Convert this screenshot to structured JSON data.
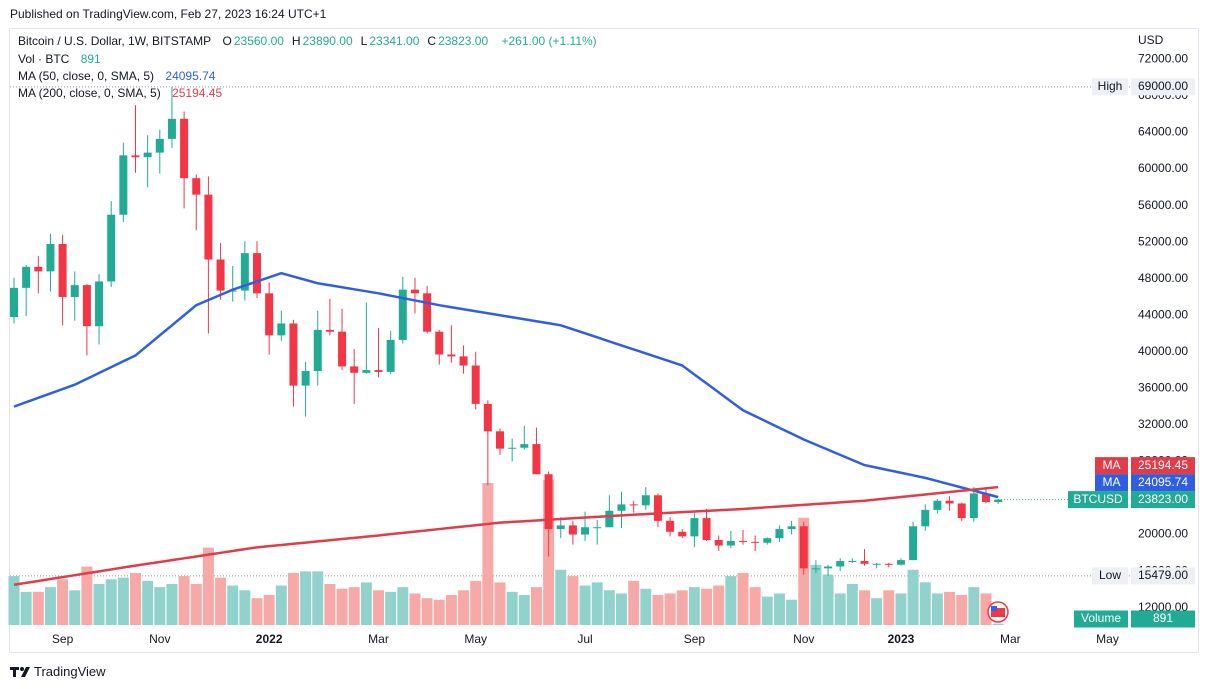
{
  "header": {
    "published": "Published on TradingView.com, Feb 27, 2023 16:24 UTC+1"
  },
  "chart_data": {
    "type": "candlestick",
    "title": "Bitcoin / U.S. Dollar, 1W, BITSTAMP",
    "legend_ohlc": [
      {
        "key": "O",
        "text": "23560.00"
      },
      {
        "key": "H",
        "text": "23890.00"
      },
      {
        "key": "L",
        "text": "23341.00"
      },
      {
        "key": "C",
        "text": "23823.00"
      }
    ],
    "change": "+261.00 (+1.11%)",
    "volume_title": "Vol · BTC",
    "currency": "USD",
    "up_color": "#22ab94",
    "down_color": "#f23645",
    "volume_up_color": "#92d2cc",
    "volume_down_color": "#f7a9a7",
    "grid": false,
    "categories": [
      null,
      null,
      null,
      null,
      "Sep",
      null,
      null,
      null,
      null,
      null,
      null,
      null,
      "Nov",
      null,
      null,
      null,
      null,
      null,
      null,
      null,
      null,
      "2022",
      null,
      null,
      null,
      null,
      null,
      null,
      null,
      null,
      "Mar",
      null,
      null,
      null,
      null,
      null,
      null,
      null,
      "May",
      null,
      null,
      null,
      null,
      null,
      null,
      null,
      null,
      "Jul",
      null,
      null,
      null,
      null,
      null,
      null,
      null,
      null,
      "Sep",
      null,
      null,
      null,
      null,
      null,
      null,
      null,
      null,
      "Nov",
      null,
      null,
      null,
      null,
      null,
      null,
      null,
      "2023",
      null,
      null,
      null,
      null,
      null,
      null,
      null,
      null,
      "Mar",
      null,
      null,
      null,
      null,
      null,
      null,
      null,
      "May",
      null
    ],
    "open": [
      43800,
      47000,
      49300,
      48800,
      51800,
      46000,
      47300,
      42800,
      47700,
      55000,
      61500,
      61300,
      61800,
      63300,
      65500,
      59000,
      57200,
      50100,
      46700,
      46700,
      50800,
      46400,
      41800,
      43100,
      36300,
      37900,
      42400,
      42200,
      38400,
      37700,
      38000,
      37800,
      41300,
      46800,
      46400,
      42200,
      39700,
      39500,
      38500,
      34300,
      31300,
      29400,
      29500,
      29900,
      26600,
      20600,
      21000,
      20000,
      20800,
      20800,
      22600,
      23300,
      23200,
      24300,
      21500,
      20300,
      19800,
      21800,
      19400,
      18800,
      19300,
      19200,
      19100,
      19600,
      20600,
      20900,
      16300,
      16300,
      16500,
      17100,
      17100,
      16800,
      16800,
      16700,
      17200,
      20900,
      22700,
      23700,
      23400,
      21800,
      24500,
      23560,
      null,
      null,
      null,
      null,
      null,
      null,
      null,
      null,
      null,
      null
    ],
    "high": [
      48100,
      49500,
      50500,
      52900,
      52800,
      48800,
      47400,
      48500,
      56500,
      62900,
      67000,
      63700,
      64300,
      69000,
      66300,
      59400,
      59200,
      51900,
      49400,
      52100,
      52100,
      47600,
      44500,
      43500,
      38900,
      44500,
      45800,
      44700,
      40300,
      45400,
      42600,
      42300,
      48200,
      48100,
      47200,
      42400,
      42900,
      40700,
      40000,
      34700,
      31600,
      30500,
      31900,
      31700,
      26900,
      21900,
      21500,
      22500,
      21600,
      24300,
      24700,
      23700,
      25200,
      24500,
      21900,
      20600,
      22400,
      22800,
      19900,
      20400,
      20500,
      19900,
      19700,
      21000,
      21500,
      21400,
      17200,
      16700,
      17400,
      17400,
      18400,
      16900,
      16900,
      17400,
      21400,
      23300,
      23900,
      24200,
      23500,
      25200,
      25000,
      23890,
      null,
      null,
      null,
      null,
      null,
      null,
      null,
      null,
      null,
      null
    ],
    "low": [
      43100,
      43900,
      46400,
      46600,
      42900,
      43400,
      39600,
      40800,
      47100,
      54200,
      59600,
      58000,
      59500,
      62300,
      55700,
      53300,
      42000,
      45700,
      45500,
      45600,
      45900,
      39700,
      41200,
      34000,
      32900,
      36300,
      41800,
      38000,
      34300,
      37600,
      37200,
      37600,
      40900,
      44200,
      42000,
      38600,
      38800,
      37600,
      33700,
      25400,
      28700,
      28000,
      29300,
      26600,
      17600,
      19600,
      18900,
      19300,
      18900,
      20800,
      20700,
      22400,
      22700,
      20800,
      19800,
      19600,
      18600,
      19300,
      18200,
      18500,
      18900,
      18200,
      18900,
      19200,
      20000,
      15600,
      15800,
      15479,
      16000,
      16900,
      16600,
      16300,
      16400,
      16600,
      17200,
      20400,
      22300,
      22600,
      21500,
      21400,
      23400,
      23341,
      null,
      null,
      null,
      null,
      null,
      null,
      null,
      null,
      null,
      null
    ],
    "close": [
      47000,
      49300,
      48800,
      51800,
      46000,
      47300,
      42800,
      47700,
      55000,
      61500,
      61300,
      61800,
      63300,
      65500,
      59000,
      57200,
      50100,
      46700,
      46700,
      50800,
      46400,
      41800,
      43100,
      36300,
      37900,
      42400,
      42200,
      38400,
      37700,
      38000,
      37800,
      41300,
      46800,
      46400,
      42200,
      39700,
      39500,
      38500,
      34300,
      31300,
      29400,
      29500,
      29900,
      26600,
      20600,
      21000,
      20000,
      20800,
      20800,
      22600,
      23300,
      23200,
      24300,
      21500,
      20300,
      19800,
      21800,
      19400,
      18800,
      19300,
      19200,
      19100,
      19600,
      20600,
      20900,
      16300,
      16300,
      16500,
      17100,
      17100,
      16800,
      16800,
      16700,
      17200,
      20900,
      22700,
      23700,
      23400,
      21800,
      24500,
      23560,
      23823,
      null,
      null,
      null,
      null,
      null,
      null,
      null,
      null,
      null,
      null
    ],
    "volume": [
      31000,
      21000,
      21000,
      24000,
      29000,
      22000,
      37000,
      26000,
      29000,
      30000,
      33000,
      28000,
      24000,
      26000,
      31000,
      26000,
      49000,
      30000,
      25000,
      22000,
      17000,
      19000,
      25000,
      33000,
      34000,
      34000,
      26000,
      23000,
      24000,
      27000,
      22000,
      21000,
      24000,
      20000,
      17000,
      16000,
      19000,
      22000,
      28000,
      90000,
      27000,
      21000,
      19000,
      24000,
      92000,
      35000,
      31000,
      25000,
      27000,
      22000,
      20000,
      28000,
      23000,
      19000,
      20000,
      22000,
      24000,
      23000,
      25000,
      31000,
      33000,
      24000,
      18000,
      20000,
      16000,
      68000,
      38000,
      32000,
      20000,
      26000,
      22000,
      17000,
      22000,
      20000,
      35000,
      27000,
      20000,
      21000,
      19000,
      24000,
      20000,
      891,
      null,
      null,
      null,
      null,
      null,
      null,
      null,
      null,
      null,
      null
    ],
    "series": [
      {
        "name": "MA (50, close, 0, SMA, 5)",
        "badge": "MA",
        "color": "#2f5fe0",
        "values": [
          34000,
          34480,
          34960,
          35440,
          35920,
          36400,
          37040,
          37680,
          38320,
          38960,
          39600,
          40700,
          41800,
          42900,
          44000,
          45100,
          45670,
          46230,
          46800,
          47250,
          47700,
          48150,
          48600,
          48230,
          47870,
          47500,
          47280,
          47060,
          46840,
          46620,
          46400,
          46140,
          45880,
          45620,
          45360,
          45100,
          44880,
          44660,
          44440,
          44220,
          44000,
          43780,
          43560,
          43340,
          43120,
          42900,
          42460,
          42020,
          41580,
          41140,
          40700,
          40260,
          39820,
          39380,
          38940,
          38500,
          37520,
          36540,
          35560,
          34580,
          33600,
          32960,
          32320,
          31680,
          31040,
          30400,
          29840,
          29280,
          28720,
          28160,
          27600,
          27320,
          27040,
          26760,
          26480,
          26200,
          25850,
          25500,
          25150,
          24800,
          24450,
          24095.74,
          null,
          null,
          null,
          null,
          null,
          null,
          null,
          null,
          null,
          null
        ]
      },
      {
        "name": "MA (200, close, 0, SMA, 5)",
        "badge": "MA",
        "color": "#e03c4a",
        "values": [
          14500,
          14710,
          14920,
          15130,
          15340,
          15550,
          15760,
          15970,
          16180,
          16390,
          16600,
          16800,
          17000,
          17200,
          17400,
          17600,
          17800,
          18000,
          18200,
          18400,
          18600,
          18730,
          18860,
          18990,
          19120,
          19250,
          19380,
          19510,
          19640,
          19770,
          19900,
          20040,
          20180,
          20320,
          20460,
          20600,
          20740,
          20880,
          21020,
          21160,
          21300,
          21380,
          21460,
          21540,
          21620,
          21700,
          21780,
          21860,
          21940,
          22020,
          22100,
          22170,
          22240,
          22310,
          22380,
          22450,
          22520,
          22590,
          22660,
          22730,
          22800,
          22890,
          22980,
          23070,
          23160,
          23250,
          23340,
          23430,
          23520,
          23610,
          23700,
          23840,
          23970,
          24110,
          24240,
          24380,
          24520,
          24650,
          24790,
          24920,
          25060,
          25194.45,
          null,
          null,
          null,
          null,
          null,
          null,
          null,
          null,
          null,
          null
        ]
      }
    ],
    "ylim": [
      10100,
      75000
    ],
    "yticks": [
      {
        "value": 12000,
        "label": "12000.00"
      },
      {
        "value": 16000,
        "label": "16000.00"
      },
      {
        "value": 20000,
        "label": "20000.00"
      },
      {
        "value": 24000,
        "label": "24000.00"
      },
      {
        "value": 28000,
        "label": "28000.00"
      },
      {
        "value": 32000,
        "label": "32000.00"
      },
      {
        "value": 36000,
        "label": "36000.00"
      },
      {
        "value": 40000,
        "label": "40000.00"
      },
      {
        "value": 44000,
        "label": "44000.00"
      },
      {
        "value": 48000,
        "label": "48000.00"
      },
      {
        "value": 52000,
        "label": "52000.00"
      },
      {
        "value": 56000,
        "label": "56000.00"
      },
      {
        "value": 60000,
        "label": "60000.00"
      },
      {
        "value": 64000,
        "label": "64000.00"
      },
      {
        "value": 68000,
        "label": "68000.00"
      },
      {
        "value": 72000,
        "label": "72000.00"
      }
    ],
    "high_marker": {
      "title": "High",
      "value": 69000,
      "label": "69000.00"
    },
    "low_marker": {
      "title": "Low",
      "value": 15479,
      "label": "15479.00"
    },
    "last_price": {
      "name": "BTCUSD",
      "label": "23823.00"
    },
    "volume_badge": "Volume"
  },
  "footer": {
    "brand": "TradingView"
  }
}
